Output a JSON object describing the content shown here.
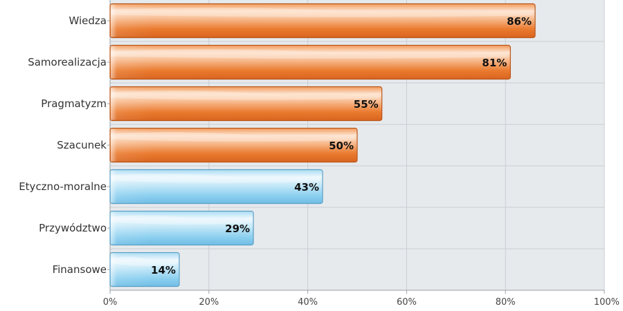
{
  "chart_data": {
    "type": "bar",
    "orientation": "horizontal",
    "categories": [
      "Wiedza",
      "Samorealizacja",
      "Pragmatyzm",
      "Szacunek",
      "Etyczno-moralne",
      "Przywództwo",
      "Finansowe"
    ],
    "values": [
      86,
      81,
      55,
      50,
      43,
      29,
      14
    ],
    "value_labels": [
      "86%",
      "81%",
      "55%",
      "50%",
      "43%",
      "29%",
      "14%"
    ],
    "bar_colors": [
      "orange",
      "orange",
      "orange",
      "orange",
      "blue",
      "blue",
      "blue"
    ],
    "x_ticks": [
      "0%",
      "20%",
      "40%",
      "60%",
      "80%",
      "100%"
    ],
    "xlim": [
      0,
      100
    ],
    "title": "",
    "xlabel": "",
    "ylabel": "",
    "grid": true,
    "legend": "none"
  },
  "colors": {
    "plot_background": "#e6eaed",
    "grid": "#c9ced3",
    "orange_fill": "#ea7a2e",
    "orange_stroke": "#b9561b",
    "orange_highlight": "#fde6d4",
    "blue_fill": "#7fcaee",
    "blue_stroke": "#5e9fc4",
    "blue_highlight": "#eef8fd"
  }
}
